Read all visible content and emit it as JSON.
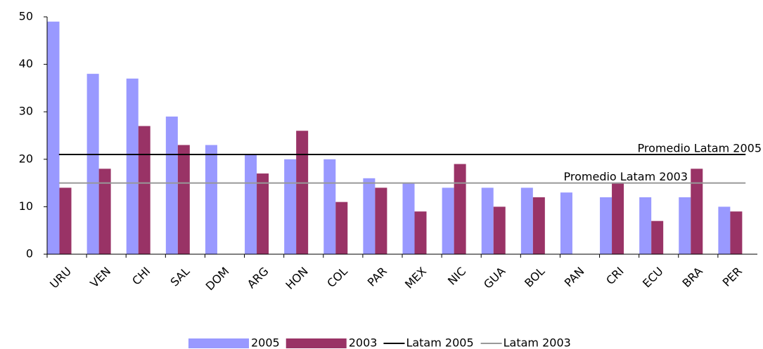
{
  "chart_data": {
    "type": "bar",
    "categories": [
      "URU",
      "VEN",
      "CHI",
      "SAL",
      "DOM",
      "ARG",
      "HON",
      "COL",
      "PAR",
      "MEX",
      "NIC",
      "GUA",
      "BOL",
      "PAN",
      "CRI",
      "ECU",
      "BRA",
      "PER"
    ],
    "series": [
      {
        "name": "2005",
        "color": "#9999ff",
        "values": [
          49,
          38,
          37,
          29,
          23,
          21,
          20,
          20,
          16,
          15,
          14,
          14,
          14,
          13,
          12,
          12,
          12,
          10
        ]
      },
      {
        "name": "2003",
        "color": "#993366",
        "values": [
          14,
          18,
          27,
          23,
          null,
          17,
          26,
          11,
          14,
          9,
          19,
          10,
          12,
          null,
          15,
          7,
          18,
          9
        ]
      }
    ],
    "lines": [
      {
        "name": "Latam 2005",
        "color": "#000000",
        "value": 21,
        "label": "Promedio Latam 2005"
      },
      {
        "name": "Latam 2003",
        "color": "#999999",
        "value": 15,
        "label": "Promedio Latam 2003"
      }
    ],
    "ylim": [
      0,
      50
    ],
    "yticks": [
      0,
      10,
      20,
      30,
      40,
      50
    ]
  }
}
